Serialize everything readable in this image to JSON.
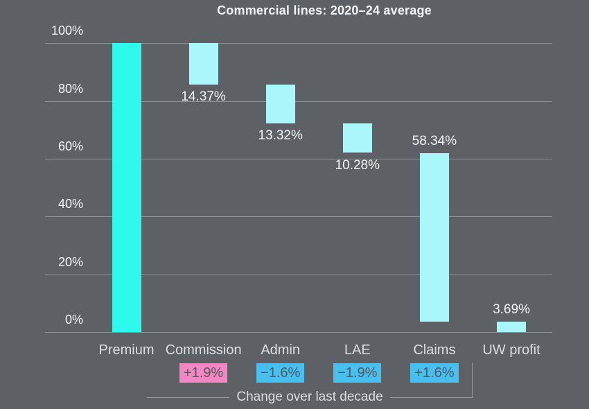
{
  "title": "Commercial lines: 2020–24 average",
  "colors": {
    "background": "#5D6165",
    "bar_bright": "#2EF9ED",
    "bar_light": "#A9F7FB",
    "badge_pink": "#F287C3",
    "badge_blue": "#47BFEF",
    "badge_text": "#54575B",
    "gridline": "#8F9296",
    "bracket_line": "#97999D",
    "text_primary": "#F2F3F5",
    "text_secondary": "#DBDDDF"
  },
  "chart_data": {
    "type": "bar",
    "subtype": "waterfall",
    "title": "Commercial lines: 2020–24 average",
    "xlabel": "",
    "ylabel": "",
    "ylim": [
      0,
      100
    ],
    "grid": true,
    "legend": "none",
    "y_ticks": [
      {
        "value": 100,
        "label": "100%"
      },
      {
        "value": 80,
        "label": "80%"
      },
      {
        "value": 60,
        "label": "60%"
      },
      {
        "value": 40,
        "label": "40%"
      },
      {
        "value": 20,
        "label": "20%"
      },
      {
        "value": 0,
        "label": "0%"
      }
    ],
    "categories": [
      "Premium",
      "Commission",
      "Admin",
      "LAE",
      "Claims",
      "UW profit"
    ],
    "bars": [
      {
        "category": "Premium",
        "value": 100,
        "start": 0,
        "end": 100,
        "style": "bright",
        "value_label": "",
        "label_position": "none",
        "badge": null
      },
      {
        "category": "Commission",
        "value": 14.37,
        "start": 85.63,
        "end": 100,
        "style": "light",
        "value_label": "14.37%",
        "label_position": "below",
        "badge": {
          "text": "+1.9%",
          "color": "pink"
        }
      },
      {
        "category": "Admin",
        "value": 13.32,
        "start": 72.31,
        "end": 85.63,
        "style": "light",
        "value_label": "13.32%",
        "label_position": "below",
        "badge": {
          "text": "−1.6%",
          "color": "blue"
        }
      },
      {
        "category": "LAE",
        "value": 10.28,
        "start": 62.03,
        "end": 72.31,
        "style": "light",
        "value_label": "10.28%",
        "label_position": "below",
        "badge": {
          "text": "−1.9%",
          "color": "blue"
        }
      },
      {
        "category": "Claims",
        "value": 58.34,
        "start": 3.69,
        "end": 62.03,
        "style": "light",
        "value_label": "58.34%",
        "label_position": "above",
        "badge": {
          "text": "+1.6%",
          "color": "blue"
        }
      },
      {
        "category": "UW profit",
        "value": 3.69,
        "start": 0,
        "end": 3.69,
        "style": "light",
        "value_label": "3.69%",
        "label_position": "above",
        "badge": null
      }
    ],
    "annotation": {
      "label": "Change over last decade"
    }
  }
}
